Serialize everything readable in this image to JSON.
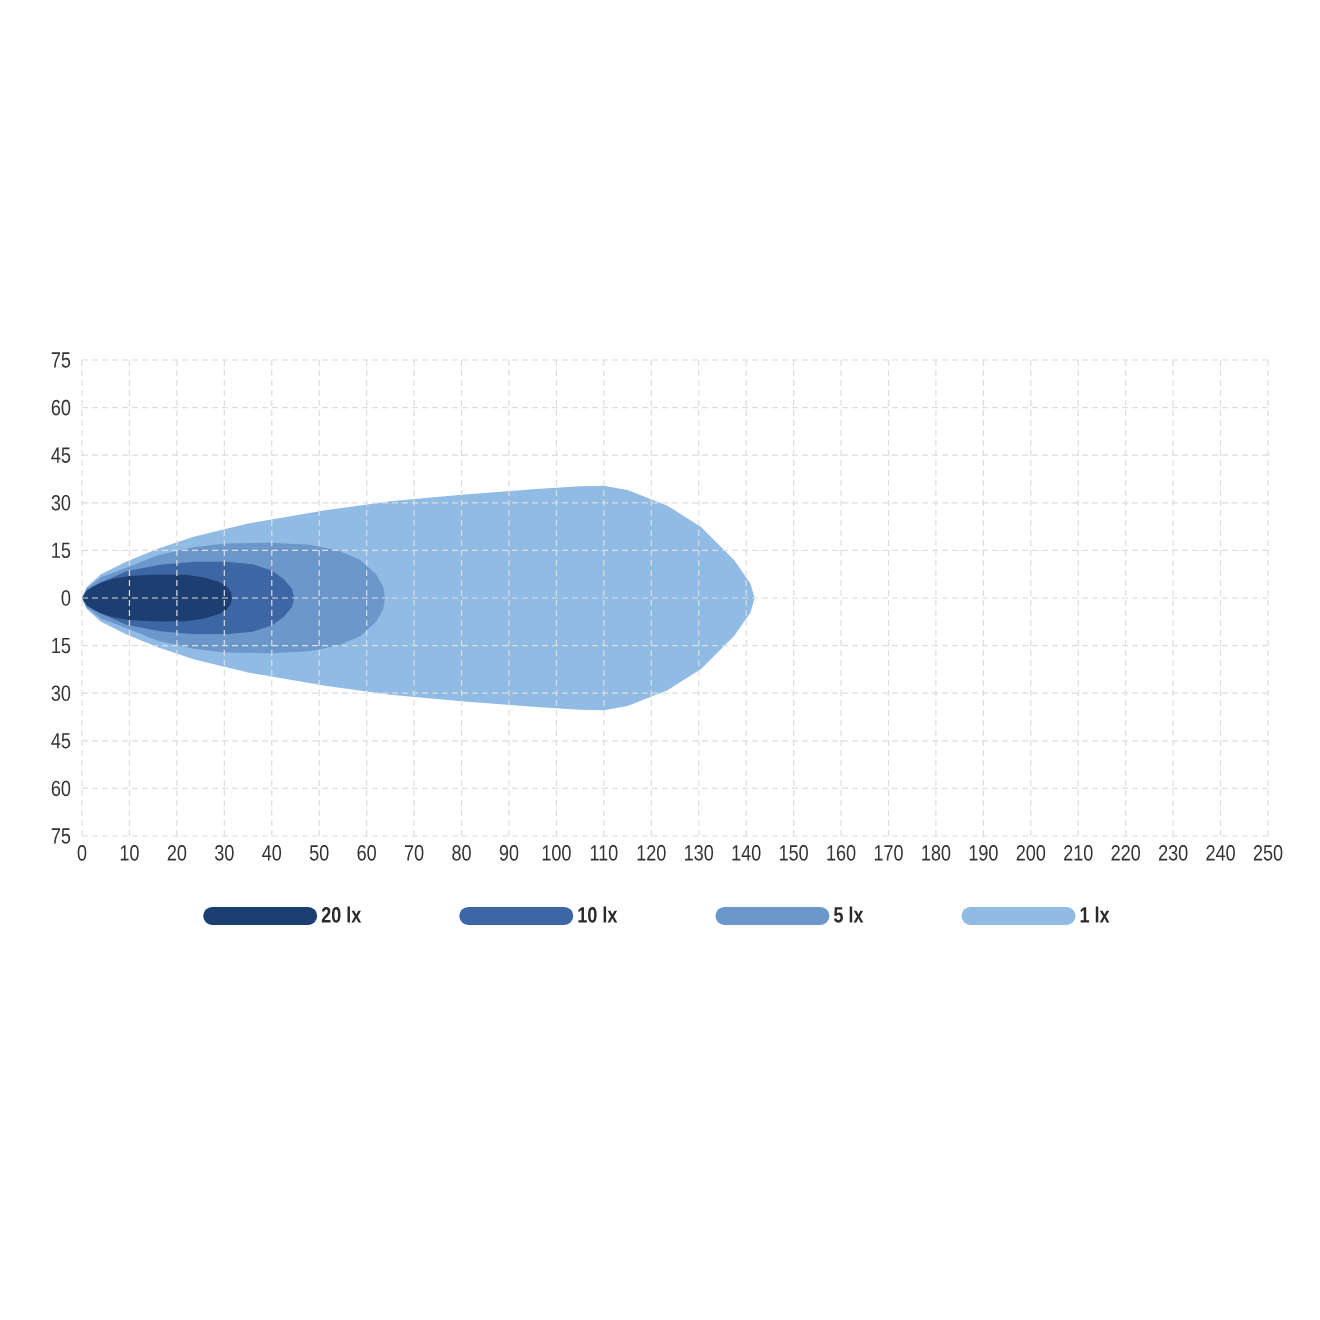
{
  "chart_data": {
    "type": "area",
    "xlim": [
      0,
      250
    ],
    "ylim": [
      -75,
      75
    ],
    "xticks": [
      0,
      10,
      20,
      30,
      40,
      50,
      60,
      70,
      80,
      90,
      100,
      110,
      120,
      130,
      140,
      150,
      160,
      170,
      180,
      190,
      200,
      210,
      220,
      230,
      240,
      250
    ],
    "yticks": [
      {
        "value": -75,
        "label": "75"
      },
      {
        "value": -60,
        "label": "60"
      },
      {
        "value": -45,
        "label": "45"
      },
      {
        "value": -30,
        "label": "30"
      },
      {
        "value": -15,
        "label": "15"
      },
      0,
      15,
      30,
      45,
      60,
      75
    ],
    "grid": true,
    "legend": "bottom",
    "series": [
      {
        "name": "20 lx",
        "color": "#1c3e70",
        "x": [
          0,
          1,
          2.4,
          4,
          6.6,
          10,
          16,
          22,
          26,
          29,
          30.5,
          31.4,
          31.6,
          31.4,
          30.5,
          29,
          26,
          22,
          16,
          10,
          6.6,
          4,
          2.4,
          1
        ],
        "values": [
          0,
          2.2,
          3.6,
          4.8,
          6.1,
          6.9,
          7.4,
          7.3,
          6.4,
          5,
          3.6,
          1.8,
          0,
          -1.8,
          -3.6,
          -5,
          -6.4,
          -7.3,
          -7.4,
          -6.9,
          -6.1,
          -4.8,
          -3.6,
          -2.2
        ]
      },
      {
        "name": "10 lx",
        "color": "#3d66a5",
        "x": [
          0,
          1,
          3.8,
          9.4,
          16.4,
          24,
          30.4,
          36,
          40,
          42.5,
          44.2,
          44.8,
          44.2,
          42.5,
          40,
          36,
          30.4,
          24,
          16.4,
          9.4,
          3.8,
          1
        ],
        "values": [
          0,
          2.6,
          4.8,
          8.4,
          10.5,
          11.4,
          11.4,
          10.6,
          8.7,
          6,
          3,
          0,
          -3,
          -6,
          -8.7,
          -10.6,
          -11.4,
          -11.4,
          -10.5,
          -8.4,
          -4.8,
          -2.6
        ]
      },
      {
        "name": "5 lx",
        "color": "#6c97cb",
        "x": [
          0,
          1,
          4,
          9.4,
          16,
          23.5,
          30,
          40,
          48,
          54,
          58.7,
          62,
          63.5,
          63.9,
          63.5,
          62,
          58.7,
          54,
          48,
          40,
          30,
          23.5,
          16,
          9.4,
          4,
          1
        ],
        "values": [
          0,
          3,
          6.5,
          9.5,
          13.5,
          16,
          17.2,
          17.4,
          16.8,
          15,
          12,
          7.5,
          3.5,
          0,
          -3.5,
          -7.5,
          -12,
          -15,
          -16.8,
          -17.4,
          -17.2,
          -16,
          -13.5,
          -9.5,
          -6.5,
          -3
        ]
      },
      {
        "name": "1 lx",
        "color": "#90bbe4",
        "x": [
          0,
          1,
          4,
          9.4,
          16,
          23.5,
          35,
          51.6,
          65,
          80,
          95,
          105,
          110,
          115,
          123.4,
          130.5,
          137.5,
          140.9,
          141.8,
          140.9,
          137.5,
          130.5,
          123.4,
          115,
          110,
          105,
          95,
          80,
          65,
          51.6,
          35,
          23.5,
          16,
          9.4,
          4,
          1
        ],
        "values": [
          0,
          3.5,
          7.5,
          11.5,
          15.5,
          19.3,
          23.5,
          27.7,
          30.5,
          32.5,
          34.3,
          35.2,
          35.4,
          34,
          29.1,
          22.4,
          11.9,
          4.6,
          0,
          -4.6,
          -11.9,
          -22.4,
          -29.1,
          -34,
          -35.4,
          -35.2,
          -34.3,
          -32.5,
          -30.5,
          -27.7,
          -23.5,
          -19.3,
          -15.5,
          -11.5,
          -7.5,
          -3.5
        ]
      }
    ]
  }
}
